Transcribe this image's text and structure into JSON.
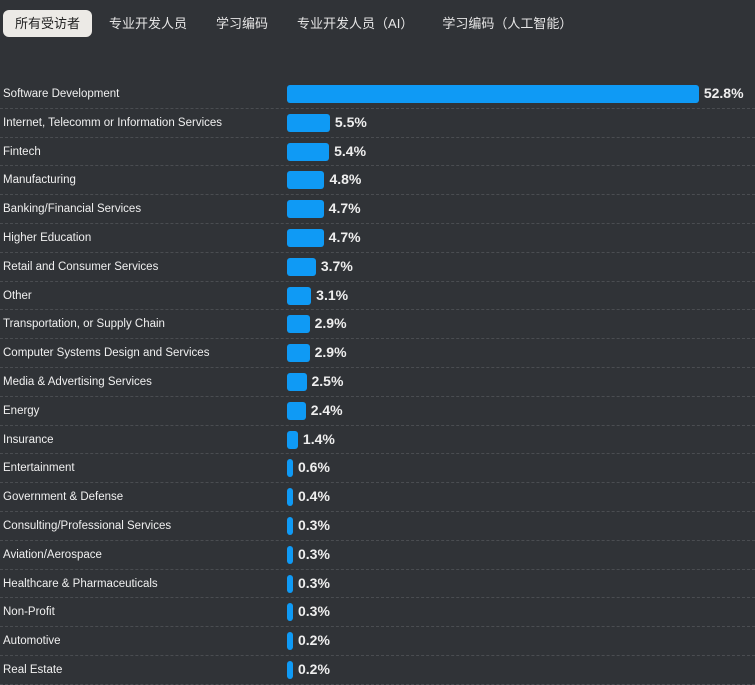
{
  "tabs": [
    {
      "label": "所有受访者",
      "active": true
    },
    {
      "label": "专业开发人员",
      "active": false
    },
    {
      "label": "学习编码",
      "active": false
    },
    {
      "label": "专业开发人员（AI）",
      "active": false
    },
    {
      "label": "学习编码（人工智能）",
      "active": false
    }
  ],
  "colors": {
    "bar": "#0f9af5",
    "background": "#303337"
  },
  "chart_data": {
    "type": "bar",
    "orientation": "horizontal",
    "unit": "%",
    "categories": [
      "Software Development",
      "Internet, Telecomm or Information Services",
      "Fintech",
      "Manufacturing",
      "Banking/Financial Services",
      "Higher Education",
      "Retail and Consumer Services",
      "Other",
      "Transportation, or Supply Chain",
      "Computer Systems Design and Services",
      "Media & Advertising Services",
      "Energy",
      "Insurance",
      "Entertainment",
      "Government & Defense",
      "Consulting/Professional Services",
      "Aviation/Aerospace",
      "Healthcare & Pharmaceuticals",
      "Non-Profit",
      "Automotive",
      "Real Estate"
    ],
    "values": [
      52.8,
      5.5,
      5.4,
      4.8,
      4.7,
      4.7,
      3.7,
      3.1,
      2.9,
      2.9,
      2.5,
      2.4,
      1.4,
      0.6,
      0.4,
      0.3,
      0.3,
      0.3,
      0.3,
      0.2,
      0.2
    ],
    "value_labels": [
      "52.8%",
      "5.5%",
      "5.4%",
      "4.8%",
      "4.7%",
      "4.7%",
      "3.7%",
      "3.1%",
      "2.9%",
      "2.9%",
      "2.5%",
      "2.4%",
      "1.4%",
      "0.6%",
      "0.4%",
      "0.3%",
      "0.3%",
      "0.3%",
      "0.3%",
      "0.2%",
      "0.2%"
    ]
  }
}
